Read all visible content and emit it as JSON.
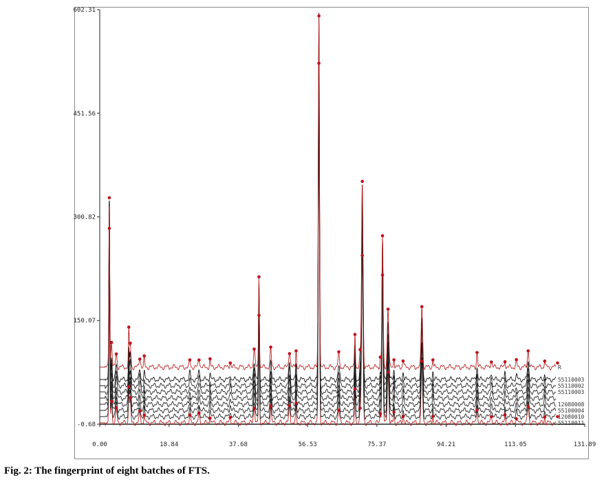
{
  "caption": "Fig. 2: The fingerprint of eight batches of FTS.",
  "chart_data": {
    "type": "line",
    "title": "",
    "xlabel": "",
    "ylabel": "",
    "xlim": [
      0.0,
      131.89
    ],
    "ylim": [
      -0.68,
      602.31
    ],
    "x_ticks": [
      "0.00",
      "18.84",
      "37.68",
      "56.53",
      "75.37",
      "94.21",
      "113.05",
      "131.89"
    ],
    "y_ticks": [
      "-0.68",
      "150.07",
      "300.82",
      "451.56",
      "602.31"
    ],
    "series_offset_step": 9,
    "series": [
      {
        "name": "55110011",
        "color": "#b22222",
        "offset": 0
      },
      {
        "name": "12080010",
        "color": "#222222",
        "offset": 9
      },
      {
        "name": "55100004",
        "color": "#222222",
        "offset": 18
      },
      {
        "name": "12080008",
        "color": "#222222",
        "offset": 27
      },
      {
        "name": "",
        "color": "#222222",
        "offset": 36
      },
      {
        "name": "55110003",
        "color": "#222222",
        "offset": 45
      },
      {
        "name": "55110002",
        "color": "#222222",
        "offset": 54
      },
      {
        "name": "55110003",
        "color": "#111111",
        "offset": 63
      },
      {
        "name": "R",
        "color": "#b22222",
        "offset": 81
      }
    ],
    "peaks": [
      {
        "x": 2.6,
        "height": 260
      },
      {
        "x": 3.2,
        "height": 35
      },
      {
        "x": 4.5,
        "height": 20
      },
      {
        "x": 7.9,
        "height": 50
      },
      {
        "x": 8.3,
        "height": 35
      },
      {
        "x": 10.9,
        "height": 15
      },
      {
        "x": 12.1,
        "height": 12
      },
      {
        "x": 24.5,
        "height": 10
      },
      {
        "x": 27.0,
        "height": 12
      },
      {
        "x": 30.0,
        "height": 10
      },
      {
        "x": 35.5,
        "height": 8
      },
      {
        "x": 42.0,
        "height": 25
      },
      {
        "x": 43.3,
        "height": 145
      },
      {
        "x": 46.5,
        "height": 25
      },
      {
        "x": 51.6,
        "height": 25
      },
      {
        "x": 53.4,
        "height": 25
      },
      {
        "x": 59.6,
        "height": 500
      },
      {
        "x": 65.0,
        "height": 20
      },
      {
        "x": 69.4,
        "height": 45
      },
      {
        "x": 70.8,
        "height": 20
      },
      {
        "x": 71.4,
        "height": 260
      },
      {
        "x": 76.3,
        "height": 15
      },
      {
        "x": 76.9,
        "height": 200
      },
      {
        "x": 78.4,
        "height": 80
      },
      {
        "x": 80.0,
        "height": 15
      },
      {
        "x": 82.5,
        "height": 10
      },
      {
        "x": 87.6,
        "height": 90
      },
      {
        "x": 90.6,
        "height": 12
      },
      {
        "x": 102.6,
        "height": 20
      },
      {
        "x": 106.5,
        "height": 10
      },
      {
        "x": 110.2,
        "height": 10
      },
      {
        "x": 113.3,
        "height": 8
      },
      {
        "x": 116.5,
        "height": 25
      },
      {
        "x": 121.0,
        "height": 10
      },
      {
        "x": 124.5,
        "height": 8
      }
    ]
  }
}
